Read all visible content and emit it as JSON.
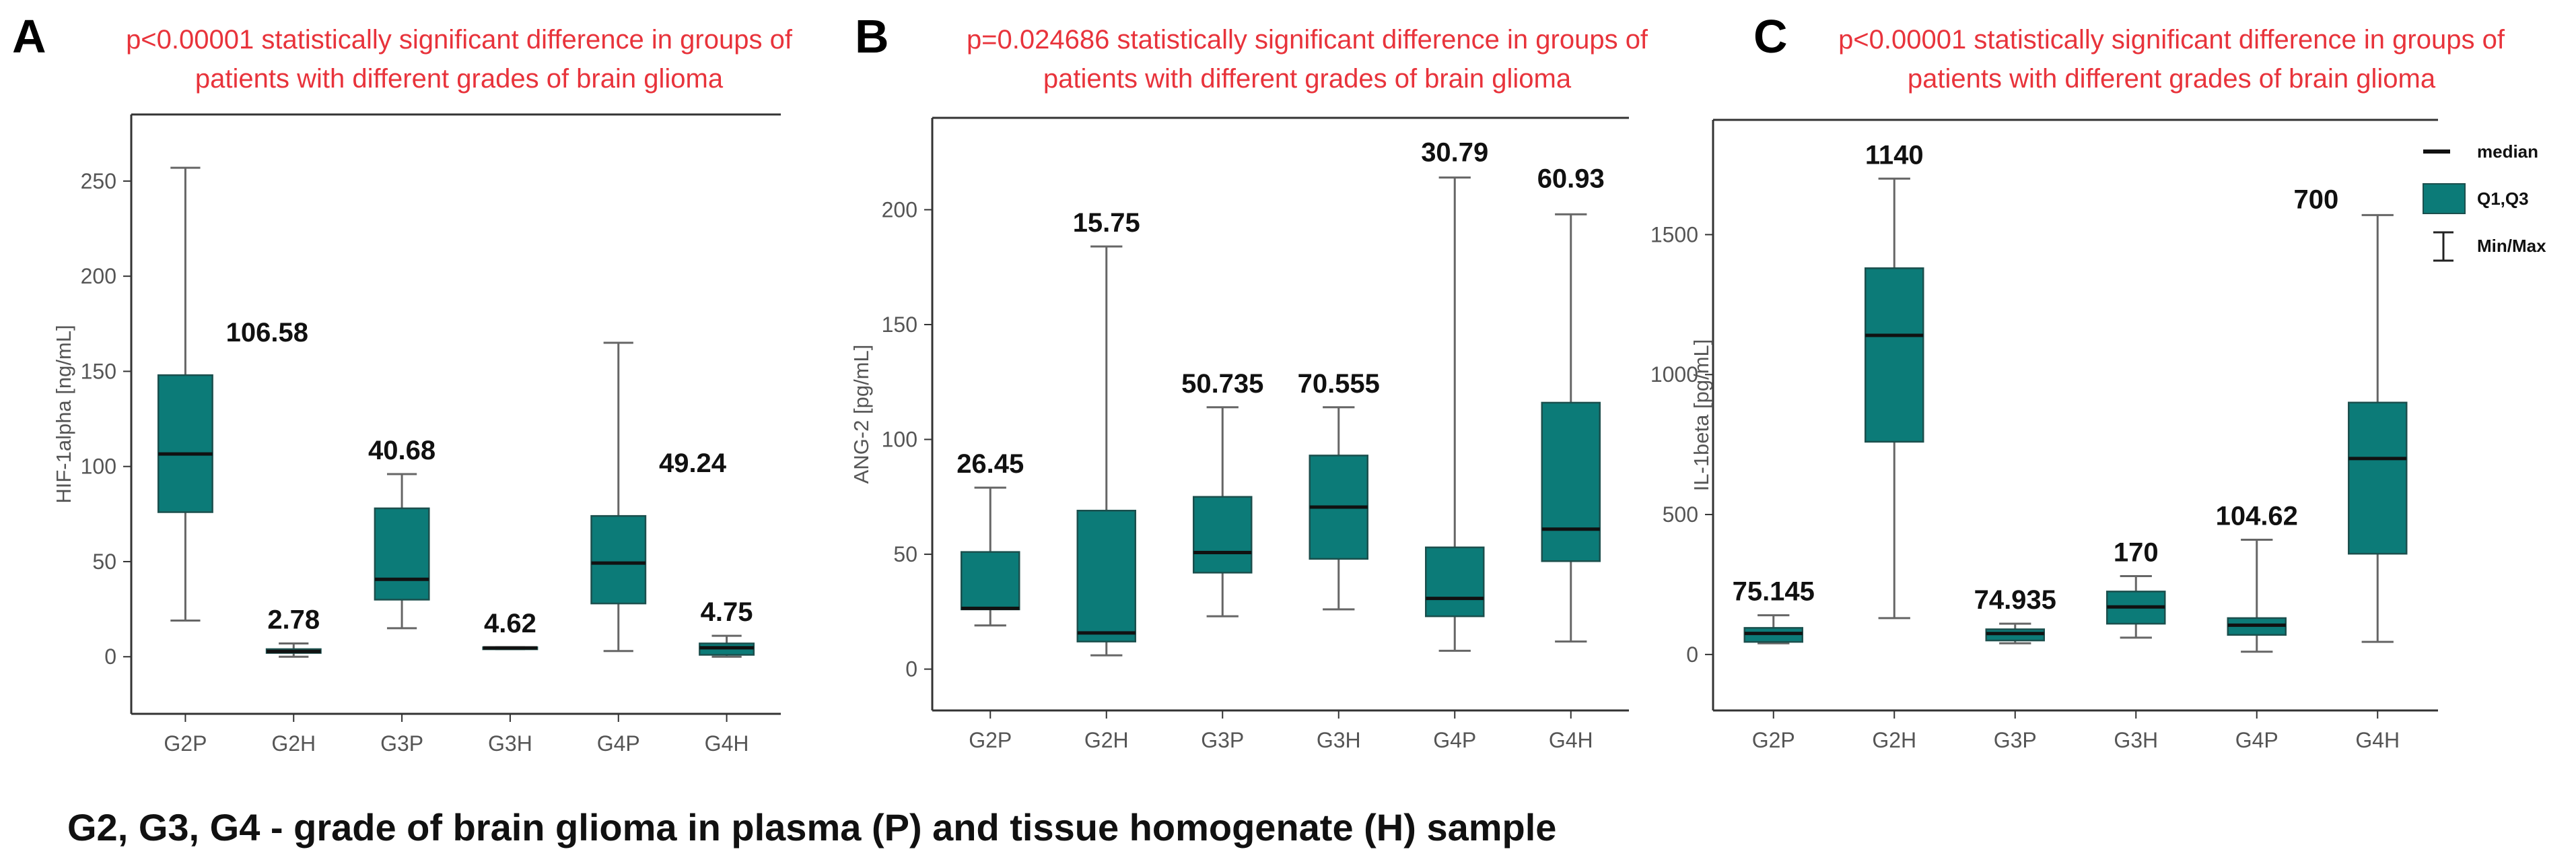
{
  "chart_data": [
    {
      "type": "box",
      "panel_label": "A",
      "title": "p<0.00001 statistically significant difference in groups of patients with different grades of brain glioma",
      "title_lines": [
        "p<0.00001 statistically significant difference in groups of",
        "patients with different grades of brain glioma"
      ],
      "ylabel": "HIF-1alpha [ng/mL]",
      "ylim": [
        -30,
        285
      ],
      "yticks": [
        0,
        50,
        100,
        150,
        200,
        250
      ],
      "categories": [
        "G2P",
        "G2H",
        "G3P",
        "G3H",
        "G4P",
        "G4H"
      ],
      "boxes": [
        {
          "min": 19,
          "q1": 76,
          "median": 106.58,
          "q3": 148,
          "max": 257,
          "label": "106.58"
        },
        {
          "min": 0,
          "q1": 2,
          "median": 2.78,
          "q3": 4,
          "max": 7,
          "label": "2.78"
        },
        {
          "min": 15,
          "q1": 30,
          "median": 40.68,
          "q3": 78,
          "max": 96,
          "label": "40.68"
        },
        {
          "min": 4,
          "q1": 4,
          "median": 4.62,
          "q3": 5,
          "max": 5,
          "label": "4.62"
        },
        {
          "min": 3,
          "q1": 28,
          "median": 49.24,
          "q3": 74,
          "max": 165,
          "label": "49.24"
        },
        {
          "min": 0,
          "q1": 1,
          "median": 4.75,
          "q3": 7,
          "max": 11,
          "label": "4.75"
        }
      ]
    },
    {
      "type": "box",
      "panel_label": "B",
      "title": "p=0.024686 statistically significant difference in groups of patients with different grades of brain glioma",
      "title_lines": [
        "p=0.024686 statistically significant difference in groups of",
        "patients with different grades of brain glioma"
      ],
      "ylabel": "ANG-2 [pg/mL]",
      "ylim": [
        -18,
        240
      ],
      "yticks": [
        0,
        50,
        100,
        150,
        200
      ],
      "categories": [
        "G2P",
        "G2H",
        "G3P",
        "G3H",
        "G4P",
        "G4H"
      ],
      "boxes": [
        {
          "min": 19,
          "q1": 26,
          "median": 26.45,
          "q3": 51,
          "max": 79,
          "label": "26.45"
        },
        {
          "min": 6,
          "q1": 12,
          "median": 15.75,
          "q3": 69,
          "max": 184,
          "label": "15.75"
        },
        {
          "min": 23,
          "q1": 42,
          "median": 50.735,
          "q3": 75,
          "max": 114,
          "label": "50.735"
        },
        {
          "min": 26,
          "q1": 48,
          "median": 70.555,
          "q3": 93,
          "max": 114,
          "label": "70.555"
        },
        {
          "min": 8,
          "q1": 23,
          "median": 30.79,
          "q3": 53,
          "max": 214,
          "label": "30.79"
        },
        {
          "min": 12,
          "q1": 47,
          "median": 60.93,
          "q3": 116,
          "max": 198,
          "label": "60.93"
        }
      ]
    },
    {
      "type": "box",
      "panel_label": "C",
      "title": "p<0.00001 statistically significant difference in groups of patients with different grades of brain glioma",
      "title_lines": [
        "p<0.00001 statistically significant difference in groups of",
        "patients with different grades of brain glioma"
      ],
      "ylabel": "IL-1beta [pg/mL]",
      "ylim": [
        -200,
        1910
      ],
      "yticks": [
        0,
        500,
        1000,
        1500
      ],
      "categories": [
        "G2P",
        "G2H",
        "G3P",
        "G3H",
        "G4P",
        "G4H"
      ],
      "boxes": [
        {
          "min": 40,
          "q1": 45,
          "median": 75.145,
          "q3": 95,
          "max": 140,
          "label": "75.145"
        },
        {
          "min": 130,
          "q1": 760,
          "median": 1140,
          "q3": 1380,
          "max": 1700,
          "label": "1140"
        },
        {
          "min": 40,
          "q1": 50,
          "median": 74.935,
          "q3": 90,
          "max": 110,
          "label": "74.935"
        },
        {
          "min": 60,
          "q1": 110,
          "median": 170,
          "q3": 225,
          "max": 280,
          "label": "170"
        },
        {
          "min": 10,
          "q1": 70,
          "median": 104.62,
          "q3": 130,
          "max": 410,
          "label": "104.62"
        },
        {
          "min": 45,
          "q1": 360,
          "median": 700,
          "q3": 900,
          "max": 1570,
          "label": "700"
        }
      ],
      "legend": {
        "position": "top-right",
        "items": [
          {
            "kind": "median",
            "label": "median"
          },
          {
            "kind": "box",
            "label": "Q1,Q3"
          },
          {
            "kind": "whisker",
            "label": "Min/Max"
          }
        ]
      }
    }
  ],
  "footer": "G2, G3, G4 - grade of brain glioma in plasma (P) and tissue homogenate (H) sample",
  "colors": {
    "box_fill": "#0c7b78",
    "box_stroke": "#1b4f4d",
    "whisker": "#666666",
    "median": "#111111",
    "significance_text": "#e8333b",
    "axis": "#333333"
  }
}
